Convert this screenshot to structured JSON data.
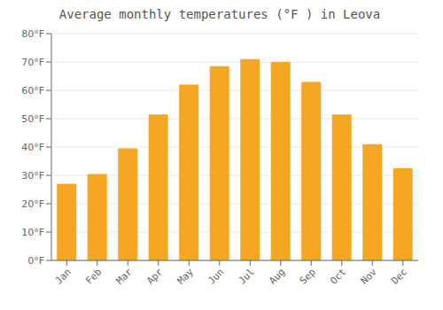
{
  "chart_data": {
    "type": "bar",
    "title": "Average monthly temperatures (°F ) in Leova",
    "categories": [
      "Jan",
      "Feb",
      "Mar",
      "Apr",
      "May",
      "Jun",
      "Jul",
      "Aug",
      "Sep",
      "Oct",
      "Nov",
      "Dec"
    ],
    "values": [
      27,
      30.5,
      39.5,
      51.5,
      62,
      68.5,
      71,
      70,
      63,
      51.5,
      41,
      32.5
    ],
    "color": "#F5A623",
    "ylim": [
      0,
      80
    ],
    "yticks": [
      {
        "value": 0,
        "label": "0°F"
      },
      {
        "value": 10,
        "label": "10°F"
      },
      {
        "value": 20,
        "label": "20°F"
      },
      {
        "value": 30,
        "label": "30°F"
      },
      {
        "value": 40,
        "label": "40°F"
      },
      {
        "value": 50,
        "label": "50°F"
      },
      {
        "value": 60,
        "label": "60°F"
      },
      {
        "value": 70,
        "label": "70°F"
      },
      {
        "value": 80,
        "label": "80°F"
      }
    ],
    "grid": true
  }
}
